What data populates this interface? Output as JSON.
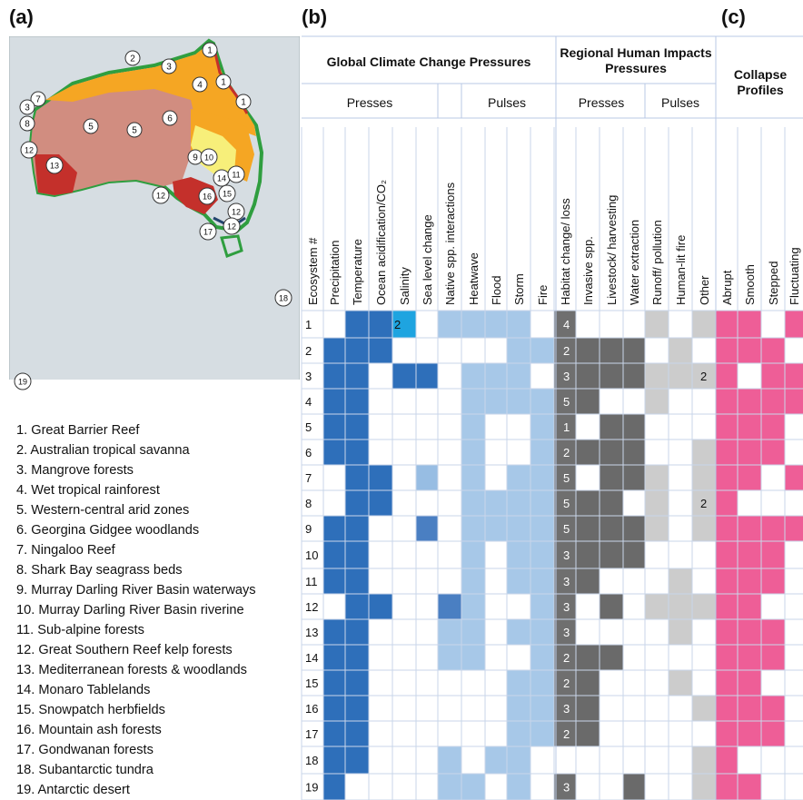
{
  "panels": {
    "a": "(a)",
    "b": "(b)",
    "c": "(c)"
  },
  "header": {
    "global_title": "Global Climate Change Pressures",
    "regional_title": "Regional Human Impacts Pressures",
    "collapse_title": "Collapse Profiles",
    "presses": "Presses",
    "pulses": "Pulses"
  },
  "columns": [
    "Ecosystem #",
    "Precipitation",
    "Temperature",
    "Ocean acidification/CO₂",
    "Salinity",
    "Sea level change",
    "Native spp. interactions",
    "Heatwave",
    "Flood",
    "Storm",
    "Fire",
    "Habitat change/ loss",
    "Invasive spp.",
    "Livestock/ harvesting",
    "Water extraction",
    "Runoff/ pollution",
    "Human-lit fire",
    "Other",
    "Abrupt",
    "Smooth",
    "Stepped",
    "Fluctuating"
  ],
  "colors": {
    "climate_press": "#2e6fba",
    "climate_press_medium": "#4a7fc2",
    "climate_press_light": "#97bde3",
    "salinity_bright": "#1ea4e0",
    "climate_pulse": "#a7c8e8",
    "habitat": "#6f6f6f",
    "human_press": "#6a6a6a",
    "human_pulse": "#cccccc",
    "collapse": "#ee5e97",
    "grid": "#c9d6ea",
    "map_ocean": "#d6dde2",
    "map_land_salmon": "#d18d80",
    "map_orange": "#f5a623",
    "map_red": "#c4302b",
    "map_yellow": "#f7ef7a",
    "map_green_outline": "#2f9e3f",
    "map_navy": "#23446e"
  },
  "matrix": {
    "ecosystems": [
      "1",
      "2",
      "3",
      "4",
      "5",
      "6",
      "7",
      "8",
      "9",
      "10",
      "11",
      "12",
      "13",
      "14",
      "15",
      "16",
      "17",
      "18",
      "19"
    ],
    "habitat_numbers": [
      "4",
      "2",
      "3",
      "5",
      "1",
      "2",
      "5",
      "5",
      "5",
      "3",
      "3",
      "3",
      "3",
      "2",
      "2",
      "3",
      "2",
      "",
      "3"
    ],
    "other_numbers": [
      "",
      "",
      "2",
      "",
      "",
      "",
      "",
      "2",
      "",
      "",
      "",
      "",
      "",
      "",
      "",
      "",
      "",
      "",
      ""
    ],
    "salinity_numbers": [
      "2",
      "",
      "",
      "",
      "",
      "",
      "",
      "",
      "",
      "",
      "",
      "",
      "",
      "",
      "",
      "",
      "",
      "",
      ""
    ],
    "cells": [
      [
        0,
        1,
        1,
        3,
        0,
        2,
        2,
        2,
        2,
        0,
        1,
        0,
        0,
        0,
        2,
        0,
        2,
        1,
        1,
        0,
        1
      ],
      [
        1,
        1,
        1,
        0,
        0,
        0,
        0,
        0,
        2,
        2,
        1,
        1,
        1,
        1,
        0,
        2,
        0,
        1,
        1,
        1,
        0
      ],
      [
        1,
        1,
        0,
        1,
        1,
        0,
        2,
        2,
        2,
        0,
        1,
        1,
        1,
        1,
        2,
        2,
        2,
        1,
        0,
        1,
        1
      ],
      [
        1,
        1,
        0,
        0,
        0,
        0,
        2,
        2,
        2,
        2,
        1,
        1,
        0,
        0,
        2,
        0,
        0,
        1,
        1,
        1,
        1
      ],
      [
        1,
        1,
        0,
        0,
        0,
        0,
        2,
        0,
        0,
        2,
        1,
        0,
        1,
        1,
        0,
        0,
        0,
        1,
        1,
        1,
        0
      ],
      [
        1,
        1,
        0,
        0,
        0,
        0,
        2,
        0,
        0,
        2,
        1,
        1,
        1,
        1,
        0,
        0,
        2,
        1,
        1,
        1,
        0
      ],
      [
        0,
        1,
        1,
        0,
        2,
        0,
        2,
        0,
        2,
        2,
        1,
        0,
        1,
        1,
        2,
        0,
        2,
        1,
        1,
        0,
        1
      ],
      [
        0,
        1,
        1,
        0,
        0,
        0,
        2,
        2,
        2,
        2,
        1,
        1,
        1,
        0,
        2,
        0,
        2,
        1,
        0,
        0,
        0
      ],
      [
        1,
        1,
        0,
        0,
        4,
        0,
        2,
        2,
        2,
        2,
        1,
        1,
        1,
        1,
        2,
        0,
        2,
        1,
        1,
        1,
        1
      ],
      [
        1,
        1,
        0,
        0,
        0,
        0,
        2,
        0,
        2,
        2,
        1,
        1,
        1,
        1,
        0,
        0,
        0,
        1,
        1,
        1,
        0
      ],
      [
        1,
        1,
        0,
        0,
        0,
        0,
        2,
        0,
        2,
        2,
        1,
        1,
        0,
        0,
        0,
        2,
        0,
        1,
        1,
        1,
        0
      ],
      [
        0,
        1,
        1,
        0,
        0,
        4,
        2,
        0,
        0,
        2,
        1,
        0,
        1,
        0,
        2,
        2,
        2,
        1,
        1,
        0,
        0
      ],
      [
        1,
        1,
        0,
        0,
        0,
        2,
        2,
        0,
        2,
        2,
        1,
        0,
        0,
        0,
        0,
        2,
        0,
        1,
        1,
        1,
        0
      ],
      [
        1,
        1,
        0,
        0,
        0,
        2,
        2,
        0,
        0,
        2,
        1,
        1,
        1,
        0,
        0,
        0,
        0,
        1,
        1,
        1,
        0
      ],
      [
        1,
        1,
        0,
        0,
        0,
        0,
        0,
        0,
        2,
        2,
        1,
        1,
        0,
        0,
        0,
        2,
        0,
        1,
        1,
        0,
        0
      ],
      [
        1,
        1,
        0,
        0,
        0,
        0,
        0,
        0,
        2,
        2,
        1,
        1,
        0,
        0,
        0,
        0,
        2,
        1,
        1,
        1,
        0
      ],
      [
        1,
        1,
        0,
        0,
        0,
        0,
        0,
        0,
        2,
        2,
        1,
        1,
        0,
        0,
        0,
        0,
        0,
        1,
        1,
        1,
        0
      ],
      [
        1,
        1,
        0,
        0,
        0,
        2,
        0,
        2,
        2,
        0,
        0,
        0,
        0,
        0,
        0,
        0,
        2,
        1,
        0,
        0,
        0
      ],
      [
        1,
        0,
        0,
        0,
        0,
        2,
        2,
        0,
        2,
        0,
        1,
        0,
        0,
        1,
        0,
        0,
        2,
        1,
        1,
        0,
        0
      ]
    ]
  },
  "map": {
    "markers": [
      {
        "n": "1"
      },
      {
        "n": "2"
      },
      {
        "n": "3"
      },
      {
        "n": "4"
      },
      {
        "n": "1"
      },
      {
        "n": "1"
      },
      {
        "n": "7"
      },
      {
        "n": "3"
      },
      {
        "n": "8"
      },
      {
        "n": "5"
      },
      {
        "n": "5"
      },
      {
        "n": "6"
      },
      {
        "n": "12"
      },
      {
        "n": "13"
      },
      {
        "n": "9"
      },
      {
        "n": "10"
      },
      {
        "n": "14"
      },
      {
        "n": "11"
      },
      {
        "n": "12"
      },
      {
        "n": "16"
      },
      {
        "n": "15"
      },
      {
        "n": "12"
      },
      {
        "n": "17"
      },
      {
        "n": "12"
      },
      {
        "n": "18"
      },
      {
        "n": "19"
      }
    ]
  },
  "legend": [
    "1.  Great Barrier Reef",
    "2.  Australian tropical savanna",
    "3.  Mangrove forests",
    "4.  Wet tropical rainforest",
    "5.  Western-central arid zones",
    "6.  Georgina Gidgee woodlands",
    "7.  Ningaloo Reef",
    "8.  Shark Bay seagrass beds",
    "9.  Murray Darling River Basin waterways",
    "10. Murray Darling River Basin riverine",
    "11. Sub-alpine forests",
    "12. Great Southern Reef kelp forests",
    "13. Mediterranean forests & woodlands",
    "14. Monaro Tablelands",
    "15. Snowpatch herbfields",
    "16. Mountain ash forests",
    "17. Gondwanan forests",
    "18. Subantarctic tundra",
    "19. Antarctic desert"
  ]
}
